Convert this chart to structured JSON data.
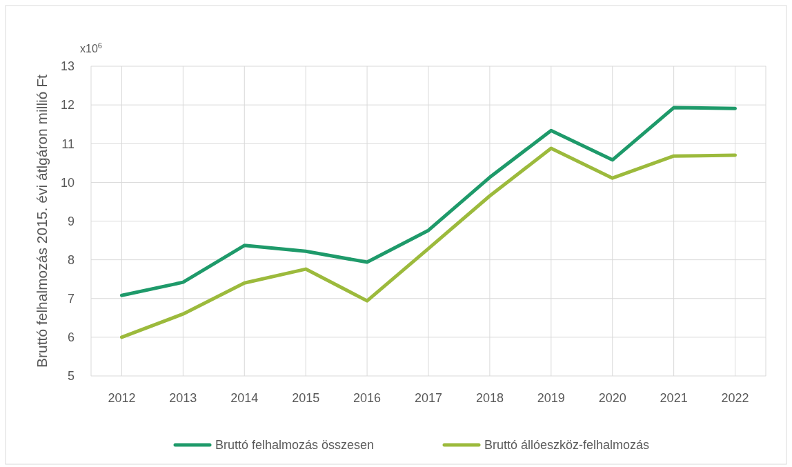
{
  "chart_data": {
    "type": "line",
    "ylabel": "Bruttó felhalmozás 2015. évi átlgáron millió Ft",
    "annotations": [
      "x10$^{6}$"
    ],
    "categories": [
      "2012",
      "2013",
      "2014",
      "2015",
      "2016",
      "2017",
      "2018",
      "2019",
      "2020",
      "2021",
      "2022"
    ],
    "series": [
      {
        "name": "Bruttó felhalmozás összesen",
        "color": "#1e9a6a",
        "values": [
          7.08,
          7.42,
          8.37,
          8.22,
          7.94,
          8.76,
          10.13,
          11.34,
          10.58,
          11.93,
          11.91
        ]
      },
      {
        "name": "Bruttó állóeszköz-felhalmozás",
        "color": "#9cba3c",
        "values": [
          6.0,
          6.6,
          7.4,
          7.76,
          6.94,
          8.29,
          9.65,
          10.88,
          10.11,
          10.68,
          10.7
        ]
      }
    ],
    "ylim": [
      5,
      13
    ],
    "yticks": [
      5,
      6,
      7,
      8,
      9,
      10,
      11,
      12,
      13
    ],
    "grid": true,
    "legend": "bottom",
    "marker": "none",
    "line_style": "solid"
  }
}
